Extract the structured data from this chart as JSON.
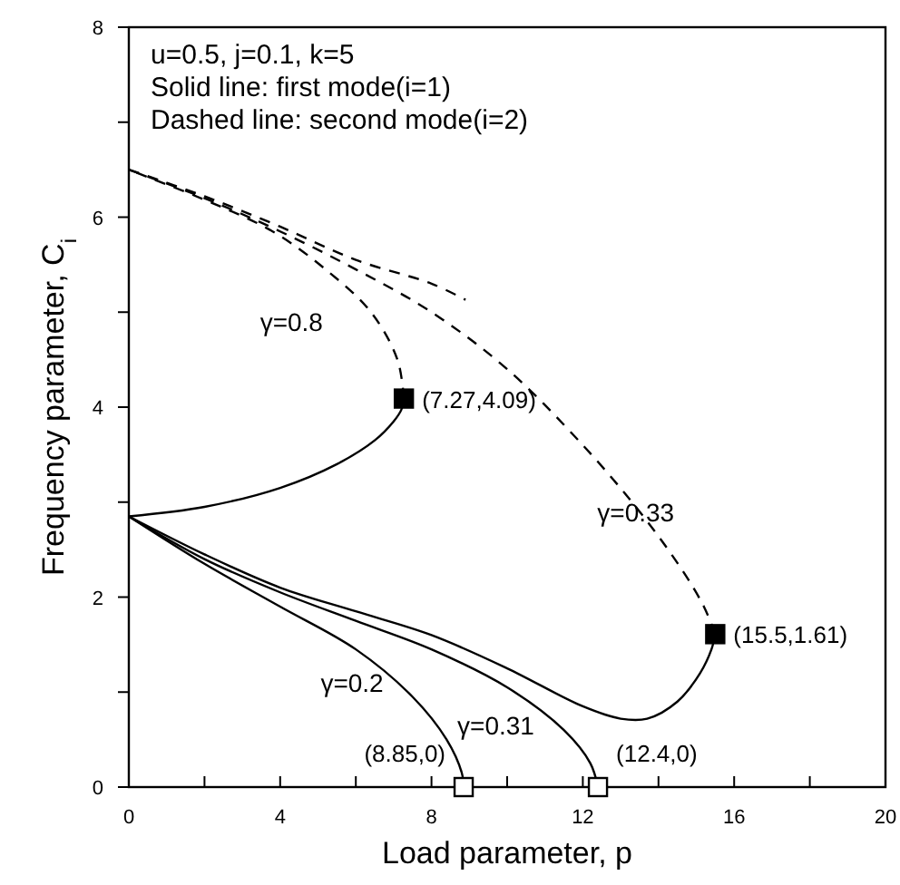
{
  "chart_data": {
    "type": "line",
    "xlabel": "Load parameter, p",
    "ylabel": "Frequency parameter, C$_{i}$",
    "xlim": [
      0,
      20
    ],
    "ylim": [
      0,
      8
    ],
    "xticks": [
      0,
      {
        "value": 2,
        "label": null
      },
      4,
      {
        "value": 6,
        "label": null
      },
      8,
      {
        "value": 10,
        "label": null
      },
      12,
      {
        "value": 14,
        "label": null
      },
      16,
      {
        "value": 18,
        "label": null
      },
      20
    ],
    "yticks": [
      0,
      {
        "value": 1,
        "label": null
      },
      2,
      {
        "value": 3,
        "label": null
      },
      4,
      {
        "value": 5,
        "label": null
      },
      6,
      {
        "value": 7,
        "label": null
      },
      8
    ],
    "grid": false,
    "marker": "none",
    "series": [
      {
        "color": "#000000",
        "line_style": "solid",
        "x": [
          0,
          2,
          4,
          5.5,
          6.5,
          7.0,
          7.2,
          7.27
        ],
        "values": [
          2.85,
          2.95,
          3.15,
          3.4,
          3.65,
          3.85,
          3.97,
          4.09
        ]
      },
      {
        "color": "#000000",
        "line_style": "dashed",
        "x": [
          7.27,
          7.1,
          6.4,
          5.2,
          3.8,
          2.2,
          0
        ],
        "values": [
          4.09,
          4.5,
          5.0,
          5.45,
          5.85,
          6.15,
          6.5
        ]
      },
      {
        "color": "#000000",
        "line_style": "dashed",
        "x": [
          0,
          2,
          4,
          6,
          8,
          10,
          12,
          13.5,
          14.6,
          15.2,
          15.5
        ],
        "values": [
          6.5,
          6.2,
          5.85,
          5.45,
          5.0,
          4.4,
          3.6,
          2.9,
          2.3,
          1.9,
          1.61
        ]
      },
      {
        "color": "#000000",
        "line_style": "dashed",
        "x": [
          0,
          2,
          4,
          6,
          8,
          8.9
        ],
        "values": [
          6.5,
          6.22,
          5.9,
          5.55,
          5.3,
          5.13
        ]
      },
      {
        "color": "#000000",
        "line_style": "solid",
        "x": [
          0,
          2,
          4,
          6,
          8,
          10,
          12,
          13,
          13.7,
          14.5,
          15.1,
          15.4,
          15.5
        ],
        "values": [
          2.85,
          2.45,
          2.1,
          1.85,
          1.6,
          1.25,
          0.85,
          0.72,
          0.72,
          0.9,
          1.2,
          1.45,
          1.61
        ]
      },
      {
        "color": "#000000",
        "line_style": "solid",
        "x": [
          0,
          2,
          4,
          6,
          8,
          10,
          11.5,
          12.2,
          12.4
        ],
        "values": [
          2.85,
          2.4,
          2.05,
          1.75,
          1.45,
          1.05,
          0.6,
          0.25,
          0
        ]
      },
      {
        "color": "#000000",
        "line_style": "solid",
        "x": [
          0,
          2,
          4,
          6,
          7.5,
          8.4,
          8.8,
          8.85
        ],
        "values": [
          2.85,
          2.35,
          1.9,
          1.45,
          0.95,
          0.5,
          0.15,
          0
        ]
      },
      {
        "type": "scatter",
        "marker": "square",
        "color": "#000000",
        "x": [
          7.27,
          15.5
        ],
        "values": [
          4.09,
          1.61
        ]
      },
      {
        "type": "scatter",
        "marker": "square",
        "color": "#ffffff",
        "x": [
          8.85,
          12.4
        ],
        "values": [
          0,
          0
        ]
      }
    ],
    "annotations": [
      "u=0.5, j=0.1, k=5",
      "Solid line: first mode(i=1)",
      "Dashed line: second mode(i=2)",
      {
        "text": "(7.27,4.09)",
        "x": 7.27,
        "y": 4.09
      },
      {
        "text": "(15.5,1.61)",
        "x": 15.5,
        "y": 1.61
      },
      {
        "text": "(8.85,0)",
        "x": 8.85,
        "y": 0
      },
      {
        "text": "(12.4,0)",
        "x": 12.4,
        "y": 0
      },
      "γ=0.8",
      "γ=0.33",
      "γ=0.2",
      "γ=0.31"
    ]
  }
}
